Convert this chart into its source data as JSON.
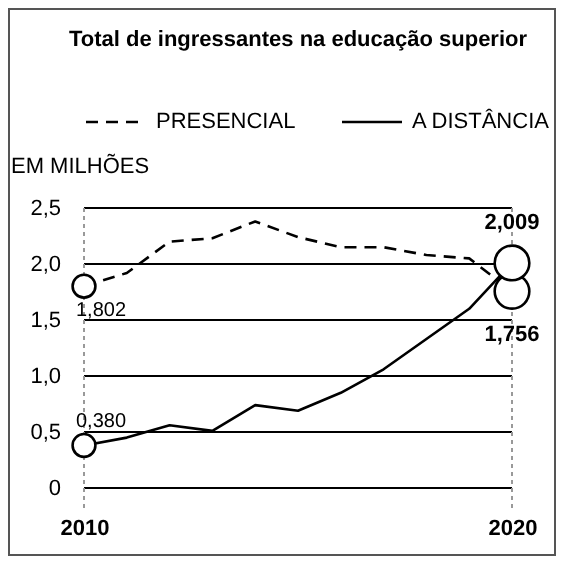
{
  "chart_data": {
    "type": "line",
    "title": "Total de ingressantes na educação superior",
    "ylabel": "EM MILHÕES",
    "x": [
      2010,
      2011,
      2012,
      2013,
      2014,
      2015,
      2016,
      2017,
      2018,
      2019,
      2020
    ],
    "series": [
      {
        "name": "PRESENCIAL",
        "color": "#000000",
        "line_style": "dashed",
        "values": [
          1.802,
          1.92,
          2.2,
          2.23,
          2.38,
          2.24,
          2.15,
          2.15,
          2.08,
          2.05,
          1.756
        ],
        "value_labels": [
          "1,802",
          null,
          null,
          null,
          null,
          null,
          null,
          null,
          null,
          null,
          "1,756"
        ]
      },
      {
        "name": "A DISTÂNCIA",
        "color": "#000000",
        "line_style": "solid",
        "values": [
          0.38,
          0.45,
          0.56,
          0.51,
          0.74,
          0.69,
          0.85,
          1.06,
          1.33,
          1.6,
          2.009
        ],
        "value_labels": [
          "0,380",
          null,
          null,
          null,
          null,
          null,
          null,
          null,
          null,
          null,
          "2,009"
        ]
      }
    ],
    "xlim": [
      2010,
      2020
    ],
    "xticks": [
      2010,
      2020
    ],
    "ylim": [
      0,
      2.5
    ],
    "yticks": [
      0,
      {
        "value": 0.5,
        "label": "0,5"
      },
      {
        "value": 1,
        "label": "1,0"
      },
      {
        "value": 1.5,
        "label": "1,5"
      },
      {
        "value": 2,
        "label": "2,0"
      },
      {
        "value": 2.5,
        "label": "2,5"
      }
    ],
    "grid": "y",
    "legend": "top",
    "ref_lines": [
      {
        "axis": "x",
        "value": 2010,
        "color": "#999999",
        "line_style": "dotted"
      },
      {
        "axis": "x",
        "value": 2020,
        "color": "#999999",
        "line_style": "dotted"
      }
    ]
  }
}
